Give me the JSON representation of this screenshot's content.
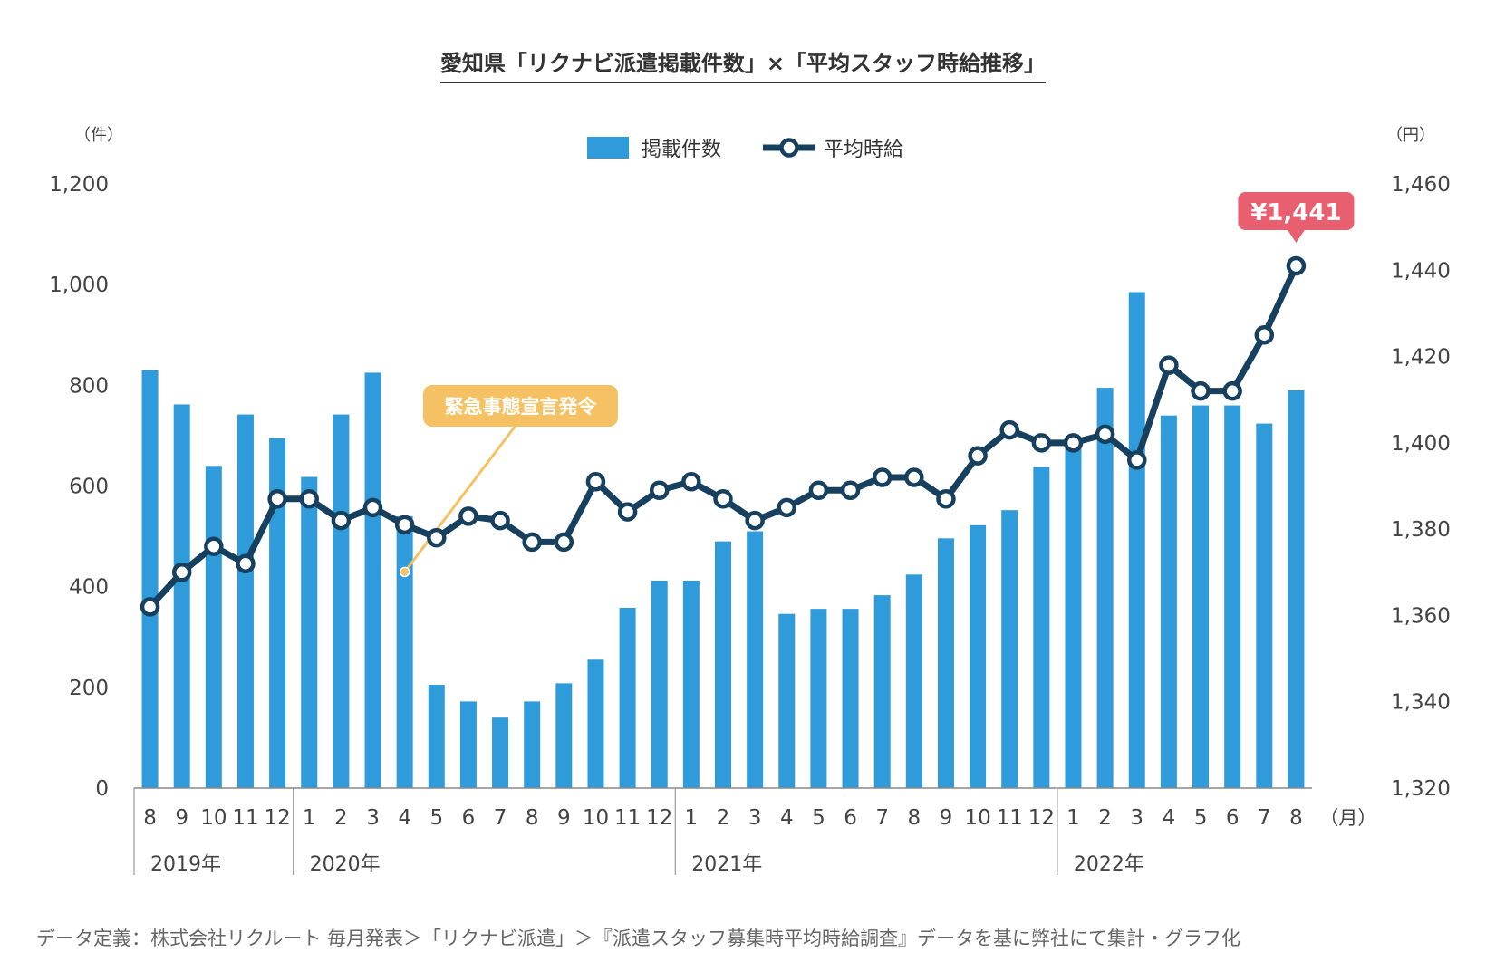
{
  "title": "愛知県「リクナビ派遣掲載件数」×「平均スタッフ時給推移」",
  "footnote": "データ定義：株式会社リクルート 毎月発表＞「リクナビ派遣」＞『派遣スタッフ募集時平均時給調査』データを基に弊社にて集計・グラフ化",
  "annotation": "緊急事態宣言発令",
  "highlight_label": "¥1,441",
  "colors": {
    "bar": "#2f9bdb",
    "line": "#17405f",
    "annotation": "#f5c163",
    "highlight": "#e8606f"
  },
  "chart_data": {
    "type": "bar",
    "title": "愛知県「リクナビ派遣掲載件数」×「平均スタッフ時給推移」",
    "categories": [
      "8",
      "9",
      "10",
      "11",
      "12",
      "1",
      "2",
      "3",
      "4",
      "5",
      "6",
      "7",
      "8",
      "9",
      "10",
      "11",
      "12",
      "1",
      "2",
      "3",
      "4",
      "5",
      "6",
      "7",
      "8",
      "9",
      "10",
      "11",
      "12",
      "1",
      "2",
      "3",
      "4",
      "5",
      "6",
      "7",
      "8"
    ],
    "x_unit": "（月）",
    "year_groups": [
      {
        "label": "2019年",
        "start": 0
      },
      {
        "label": "2020年",
        "start": 5
      },
      {
        "label": "2021年",
        "start": 17
      },
      {
        "label": "2022年",
        "start": 29
      }
    ],
    "left_axis": {
      "unit": "（件）",
      "ylim": [
        0,
        1200
      ],
      "ticks": [
        "0",
        "200",
        "400",
        "600",
        "800",
        "1,000",
        "1,200"
      ],
      "tick_values": [
        0,
        200,
        400,
        600,
        800,
        1000,
        1200
      ]
    },
    "right_axis": {
      "unit": "（円）",
      "ylim": [
        1320,
        1460
      ],
      "ticks": [
        "1,320",
        "1,340",
        "1,360",
        "1,380",
        "1,400",
        "1,420",
        "1,440",
        "1,460"
      ],
      "tick_values": [
        1320,
        1340,
        1360,
        1380,
        1400,
        1420,
        1440,
        1460
      ]
    },
    "legend_position": "top-center",
    "series": [
      {
        "name": "掲載件数",
        "type": "bar",
        "axis": "left",
        "values": [
          830,
          762,
          640,
          742,
          695,
          618,
          742,
          825,
          540,
          205,
          172,
          140,
          172,
          208,
          255,
          358,
          412,
          412,
          490,
          510,
          346,
          356,
          356,
          383,
          424,
          496,
          522,
          552,
          638,
          685,
          795,
          985,
          740,
          760,
          760,
          724,
          790
        ]
      },
      {
        "name": "平均時給",
        "type": "line",
        "axis": "right",
        "values": [
          1362,
          1370,
          1376,
          1372,
          1387,
          1387,
          1382,
          1385,
          1381,
          1378,
          1383,
          1382,
          1377,
          1377,
          1391,
          1384,
          1389,
          1391,
          1387,
          1382,
          1385,
          1389,
          1389,
          1392,
          1392,
          1387,
          1397,
          1403,
          1400,
          1400,
          1402,
          1396,
          1418,
          1412,
          1412,
          1425,
          1441
        ]
      }
    ],
    "annotation_index": 8,
    "highlight_index": 36
  }
}
